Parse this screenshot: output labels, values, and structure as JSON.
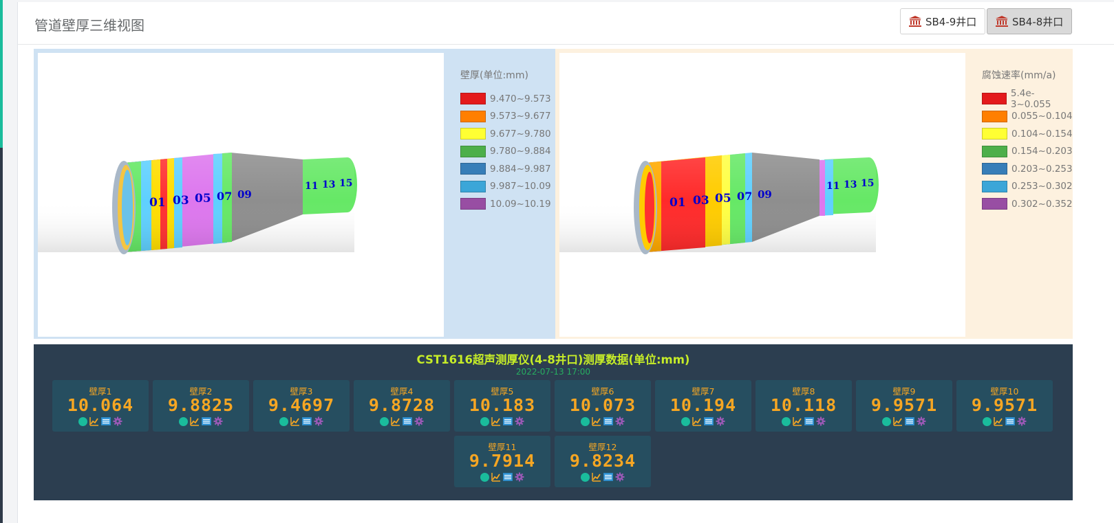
{
  "header": {
    "title": "管道壁厚三维视图",
    "wells": [
      {
        "label": "SB4-9井口",
        "active": false
      },
      {
        "label": "SB4-8井口",
        "active": true
      }
    ]
  },
  "thickness_view": {
    "legend_title": "壁厚(单位:mm)",
    "legend": [
      {
        "range": "9.470~9.573",
        "color": "#e41a1c"
      },
      {
        "range": "9.573~9.677",
        "color": "#ff7f00"
      },
      {
        "range": "9.677~9.780",
        "color": "#ffff33"
      },
      {
        "range": "9.780~9.884",
        "color": "#4daf4a"
      },
      {
        "range": "9.884~9.987",
        "color": "#377eb8"
      },
      {
        "range": "9.987~10.09",
        "color": "#3ba6d8"
      },
      {
        "range": "10.09~10.19",
        "color": "#984ea3"
      }
    ],
    "labels": [
      "01",
      "03",
      "05",
      "07",
      "09",
      "11",
      "13",
      "15"
    ]
  },
  "corrosion_view": {
    "legend_title": "腐蚀速率(mm/a)",
    "legend": [
      {
        "range": "5.4e-3~0.055",
        "color": "#e41a1c"
      },
      {
        "range": "0.055~0.104",
        "color": "#ff7f00"
      },
      {
        "range": "0.104~0.154",
        "color": "#ffff33"
      },
      {
        "range": "0.154~0.203",
        "color": "#4daf4a"
      },
      {
        "range": "0.203~0.253",
        "color": "#377eb8"
      },
      {
        "range": "0.253~0.302",
        "color": "#3ba6d8"
      },
      {
        "range": "0.302~0.352",
        "color": "#984ea3"
      }
    ],
    "labels": [
      "01",
      "03",
      "05",
      "07",
      "09",
      "11",
      "13",
      "15"
    ]
  },
  "data_panel": {
    "title": "CST1616超声测厚仪(4-8井口)测厚数据(单位:mm)",
    "timestamp": "2022-07-13 17:00",
    "cards": [
      {
        "label": "壁厚1",
        "value": "10.064"
      },
      {
        "label": "壁厚2",
        "value": "9.8825"
      },
      {
        "label": "壁厚3",
        "value": "9.4697"
      },
      {
        "label": "壁厚4",
        "value": "9.8728"
      },
      {
        "label": "壁厚5",
        "value": "10.183"
      },
      {
        "label": "壁厚6",
        "value": "10.073"
      },
      {
        "label": "壁厚7",
        "value": "10.194"
      },
      {
        "label": "壁厚8",
        "value": "10.118"
      },
      {
        "label": "壁厚9",
        "value": "9.9571"
      },
      {
        "label": "壁厚10",
        "value": "9.9571"
      },
      {
        "label": "壁厚11",
        "value": "9.7914"
      },
      {
        "label": "壁厚12",
        "value": "9.8234"
      }
    ],
    "card_icons": [
      "status-dot-icon",
      "trend-chart-icon",
      "table-list-icon",
      "gear-icon"
    ]
  }
}
